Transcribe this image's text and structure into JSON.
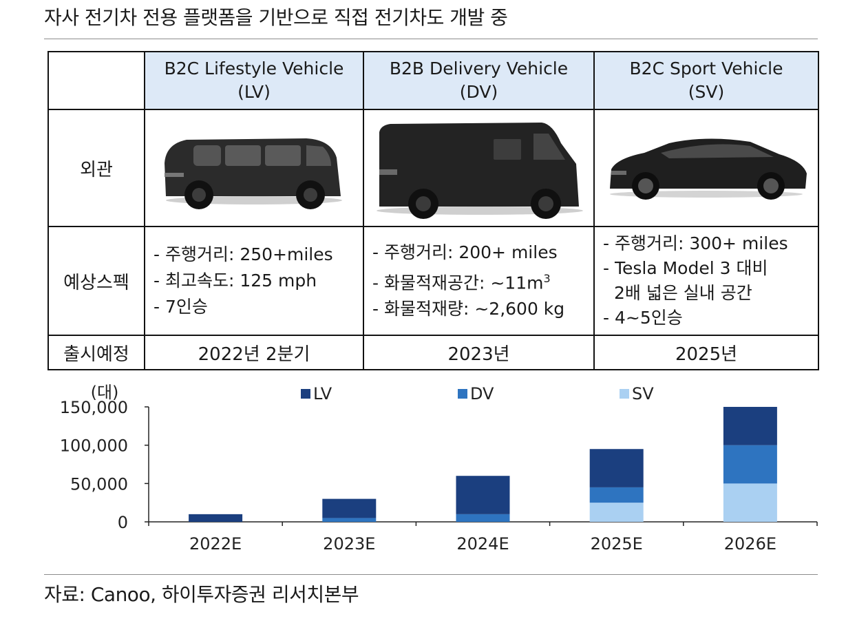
{
  "title": "자사 전기차 전용 플랫폼을 기반으로 직접 전기차도 개발 중",
  "table": {
    "columns": [
      {
        "name": "B2C Lifestyle Vehicle",
        "code": "(LV)"
      },
      {
        "name": "B2B Delivery Vehicle",
        "code": "(DV)"
      },
      {
        "name": "B2C Sport Vehicle",
        "code": "(SV)"
      }
    ],
    "row_labels": {
      "exterior": "외관",
      "specs": "예상스펙",
      "launch": "출시예정"
    },
    "specs": {
      "lv": [
        "- 주행거리: 250+miles",
        "- 최고속도: 125 mph",
        "- 7인승"
      ],
      "dv": {
        "line1": "- 주행거리: 200+ miles",
        "line2": "- 화물적재공간: ~11m",
        "line2_sup": "3",
        "line3": "- 화물적재량: ~2,600 kg"
      },
      "sv": [
        "- 주행거리: 300+ miles",
        "- Tesla Model 3 대비",
        "2배 넓은 실내 공간",
        "- 4~5인승"
      ]
    },
    "launch": [
      "2022년 2분기",
      "2023년",
      "2025년"
    ]
  },
  "chart_data": {
    "type": "bar",
    "stacked": true,
    "ylabel": "(대)",
    "ylim": [
      0,
      150000
    ],
    "yticks": [
      "150,000",
      "100,000",
      "50,000",
      "0"
    ],
    "categories": [
      "2022E",
      "2023E",
      "2024E",
      "2025E",
      "2026E"
    ],
    "series": [
      {
        "name": "SV",
        "values": [
          0,
          0,
          0,
          25000,
          50000
        ],
        "color": "#aad0f2"
      },
      {
        "name": "DV",
        "values": [
          0,
          5000,
          10000,
          20000,
          50000
        ],
        "color": "#2e74c0"
      },
      {
        "name": "LV",
        "values": [
          10000,
          25000,
          50000,
          50000,
          50000
        ],
        "color": "#1b3f7f"
      }
    ],
    "legend_order": [
      "LV",
      "DV",
      "SV"
    ],
    "legend_position": "top",
    "grid": false
  },
  "source": "자료: Canoo, 하이투자증권 리서치본부"
}
